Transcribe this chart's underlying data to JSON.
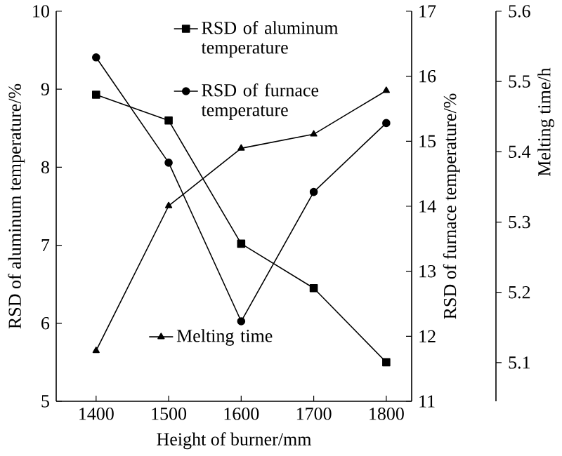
{
  "chart_data": {
    "type": "line",
    "xlabel": "Height of burner/mm",
    "ylabel": "RSD of aluminum temperature/%",
    "y2label": "RSD of furnace temperature/%",
    "y3label": "Melting time/h",
    "x": [
      1400,
      1500,
      1600,
      1700,
      1800
    ],
    "series": [
      {
        "name": "RSD of aluminum temperature",
        "color": "#000000",
        "marker": "square",
        "values": [
          8.93,
          8.6,
          7.02,
          6.45,
          5.5
        ]
      },
      {
        "name": "RSD of furnace temperature",
        "color": "#000000",
        "marker": "circle",
        "axis": "y2",
        "values": [
          16.29,
          14.67,
          12.23,
          14.22,
          15.28
        ]
      },
      {
        "name": "Melting time",
        "color": "#000000",
        "marker": "triangle",
        "axis": "y3",
        "values": [
          5.117,
          5.323,
          5.405,
          5.425,
          5.487
        ]
      }
    ],
    "xlim": [
      1345,
      1835
    ],
    "xticks": [
      1400,
      1500,
      1600,
      1700,
      1800
    ],
    "ylim": [
      5,
      10
    ],
    "yticks": [
      5,
      6,
      7,
      8,
      9,
      10
    ],
    "y2lim": [
      11,
      17
    ],
    "y2ticks": [
      11,
      12,
      13,
      14,
      15,
      16,
      17
    ],
    "y3lim": [
      5.045,
      5.6
    ],
    "y3ticks": [
      5.1,
      5.2,
      5.3,
      5.4,
      5.5,
      5.6
    ],
    "grid": false,
    "legend": "top",
    "line_style": "solid"
  }
}
